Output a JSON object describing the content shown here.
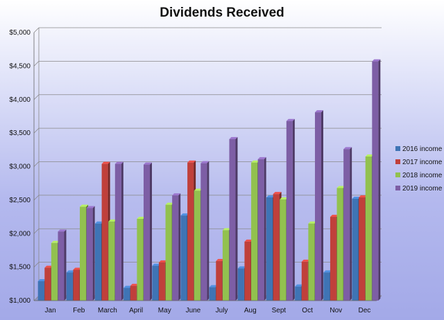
{
  "chart_data": {
    "type": "bar",
    "title": "Dividends Received",
    "xlabel": "",
    "ylabel": "",
    "ylim": [
      1000,
      5000
    ],
    "y_ticks": [
      "$1,000",
      "$1,500",
      "$2,000",
      "$2,500",
      "$3,000",
      "$3,500",
      "$4,000",
      "$4,500",
      "$5,000"
    ],
    "categories": [
      "Jan",
      "Feb",
      "March",
      "April",
      "May",
      "June",
      "July",
      "Aug",
      "Sept",
      "Oct",
      "Nov",
      "Dec"
    ],
    "series": [
      {
        "name": "2016 income",
        "color": "#3f74b5",
        "values": [
          1290,
          1420,
          2150,
          1190,
          1520,
          2270,
          1200,
          1480,
          2540,
          1210,
          1420,
          2520
        ]
      },
      {
        "name": "2017 income",
        "color": "#c0403b",
        "values": [
          1490,
          1460,
          3040,
          1220,
          1570,
          3060,
          1590,
          1880,
          2590,
          1580,
          2250,
          2540
        ]
      },
      {
        "name": "2018 income",
        "color": "#92c14f",
        "values": [
          1860,
          2400,
          2180,
          2220,
          2430,
          2640,
          2050,
          3060,
          2510,
          2150,
          2680,
          3150
        ]
      },
      {
        "name": "2019 income",
        "color": "#7d5ea5",
        "values": [
          2030,
          2380,
          3040,
          3030,
          2570,
          3050,
          3410,
          3110,
          3680,
          3810,
          3260,
          4570
        ]
      }
    ],
    "grid": true,
    "legend_position": "right"
  }
}
